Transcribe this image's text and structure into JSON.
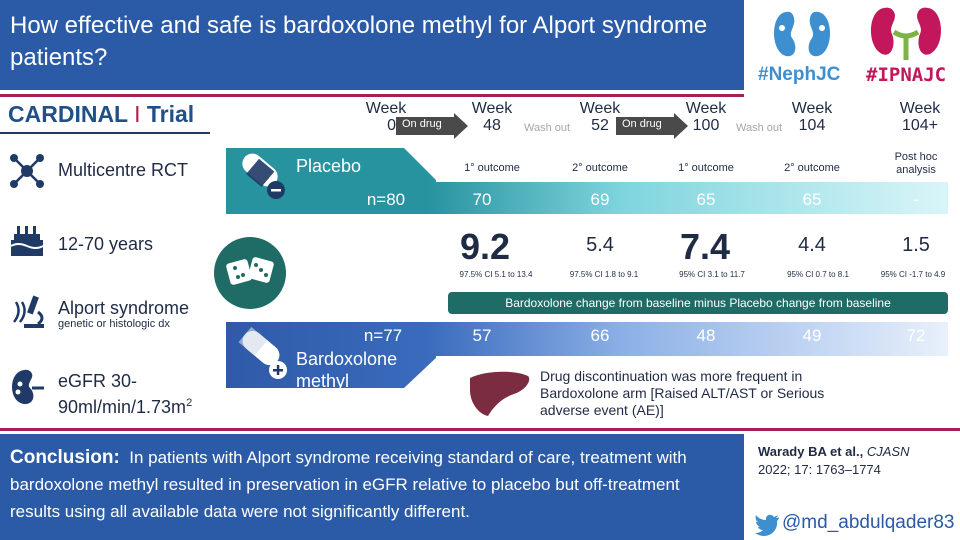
{
  "title": "How effective and safe is bardoxolone methyl for Alport syndrome patients?",
  "logos": {
    "neph": "#NephJC",
    "ipna": "#IPNAJC"
  },
  "trial": {
    "name": "CARDINAL",
    "sep": "I",
    "suffix": "Trial"
  },
  "features": [
    {
      "text": "Multicentre RCT",
      "icon": "network-icon"
    },
    {
      "text": "12-70 years",
      "icon": "cake-icon"
    },
    {
      "text": "Alport syndrome",
      "sub": "genetic or histologic dx",
      "icon": "microscope-icon"
    },
    {
      "text": "eGFR 30-",
      "text2": "90ml/min/1.73m",
      "sup": "2",
      "icon": "kidney-icon"
    }
  ],
  "timeline": {
    "weeks": [
      {
        "top": "Week",
        "num": "0"
      },
      {
        "top": "Week",
        "num": "48"
      },
      {
        "top": "Week",
        "num": "52"
      },
      {
        "top": "Week",
        "num": "100"
      },
      {
        "top": "Week",
        "num": "104"
      },
      {
        "top": "Week",
        "num": "104+"
      }
    ],
    "on_drug": "On drug",
    "wash_out": "Wash out"
  },
  "placebo": {
    "label": "Placebo",
    "n": "n=80",
    "outcomes": [
      "1° outcome",
      "2° outcome",
      "1° outcome",
      "2° outcome"
    ],
    "posthoc1": "Post hoc",
    "posthoc2": "analysis",
    "values": [
      "70",
      "69",
      "65",
      "65",
      "-"
    ]
  },
  "diff": {
    "values": [
      "9.2",
      "5.4",
      "7.4",
      "4.4",
      "1.5"
    ],
    "cis": [
      "97.5% CI 5.1 to 13.4",
      "97.5% CI 1.8 to 9.1",
      "95% CI 3.1 to 11.7",
      "95% CI 0.7 to 8.1",
      "95% CI -1.7 to 4.9"
    ],
    "bar": "Bardoxolone change from baseline minus Placebo change from baseline"
  },
  "bardox": {
    "label1": "Bardoxolone",
    "label2": "methyl",
    "n": "n=77",
    "values": [
      "57",
      "66",
      "48",
      "49",
      "72"
    ]
  },
  "safety": "Drug discontinuation was more frequent in Bardoxolone arm [Raised ALT/AST or Serious adverse event (AE)]",
  "conclusion": {
    "head": "Conclusion:",
    "text": "In patients with Alport syndrome receiving standard of care, treatment with bardoxolone methyl resulted in preservation in eGFR relative to placebo but off-treatment results using all available data were not significantly different."
  },
  "citation": {
    "authors": "Warady BA et al.,",
    "journal": "CJASN",
    "ref": "2022; 17: 1763–1774"
  },
  "twitter": "@md_abdulqader83",
  "colors": {
    "blue": "#2b5aa6",
    "teal": "#1f6b66",
    "magenta": "#a5205a"
  }
}
